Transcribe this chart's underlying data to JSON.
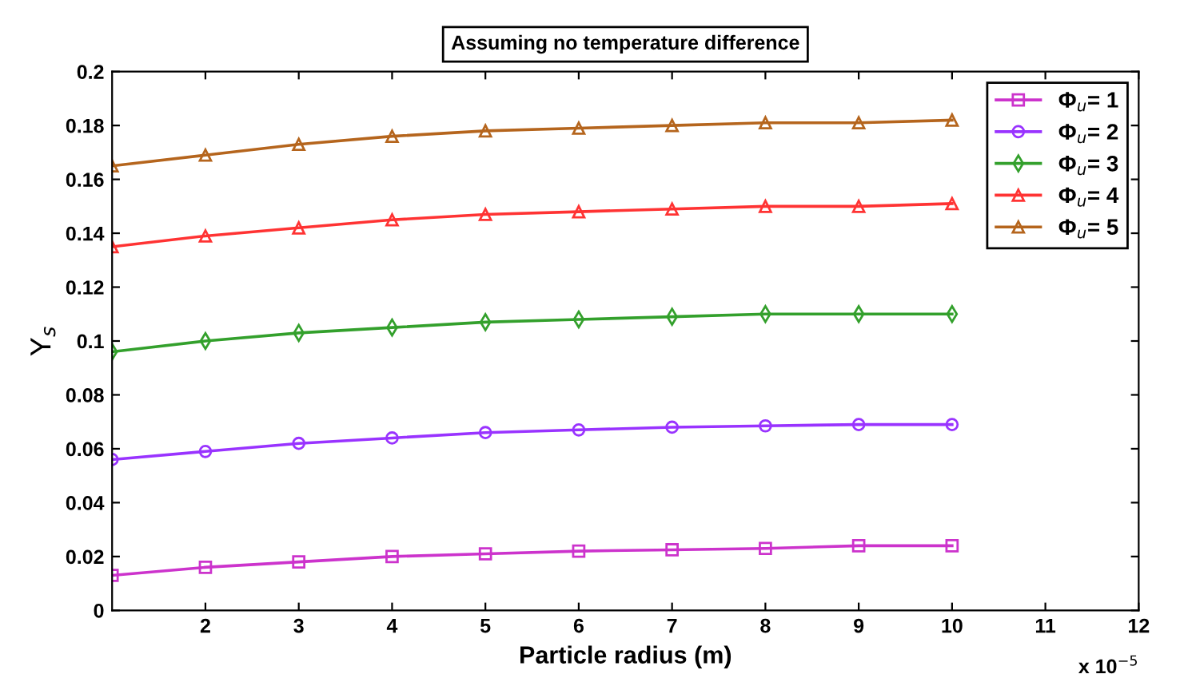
{
  "chart_data": {
    "type": "line",
    "title": "Assuming no temperature difference",
    "xlabel": "Particle radius (m)",
    "ylabel": "Y$_{s}$",
    "annotations": [
      "x 10$^{−5}$"
    ],
    "x": [
      1,
      2,
      3,
      4,
      5,
      6,
      7,
      8,
      9,
      10
    ],
    "series": [
      {
        "name": "Φ$_{u}$= 1",
        "color": "#cc33cc",
        "marker": "square",
        "values": [
          0.013,
          0.016,
          0.018,
          0.02,
          0.021,
          0.022,
          0.0225,
          0.023,
          0.024,
          0.024
        ]
      },
      {
        "name": "Φ$_{u}$= 2",
        "color": "#9933ff",
        "marker": "circle",
        "values": [
          0.056,
          0.059,
          0.062,
          0.064,
          0.066,
          0.067,
          0.068,
          0.0685,
          0.069,
          0.069
        ]
      },
      {
        "name": "Φ$_{u}$= 3",
        "color": "#33a02c",
        "marker": "diamond",
        "values": [
          0.096,
          0.1,
          0.103,
          0.105,
          0.107,
          0.108,
          0.109,
          0.11,
          0.11,
          0.11
        ]
      },
      {
        "name": "Φ$_{u}$= 4",
        "color": "#ff3333",
        "marker": "triangle",
        "values": [
          0.135,
          0.139,
          0.142,
          0.145,
          0.147,
          0.148,
          0.149,
          0.15,
          0.15,
          0.151
        ]
      },
      {
        "name": "Φ$_{u}$= 5",
        "color": "#b5651d",
        "marker": "triangle",
        "values": [
          0.165,
          0.169,
          0.173,
          0.176,
          0.178,
          0.179,
          0.18,
          0.181,
          0.181,
          0.182
        ]
      }
    ],
    "xlim": [
      1,
      12
    ],
    "xticks": [
      2,
      3,
      4,
      5,
      6,
      7,
      8,
      9,
      10,
      11,
      12
    ],
    "ylim": [
      0,
      0.2
    ],
    "yticks": [
      0,
      0.02,
      0.04,
      0.06,
      0.08,
      0.1,
      0.12,
      0.14,
      0.16,
      0.18,
      0.2
    ],
    "legend": "top right",
    "grid": false,
    "line_style": "solid"
  }
}
